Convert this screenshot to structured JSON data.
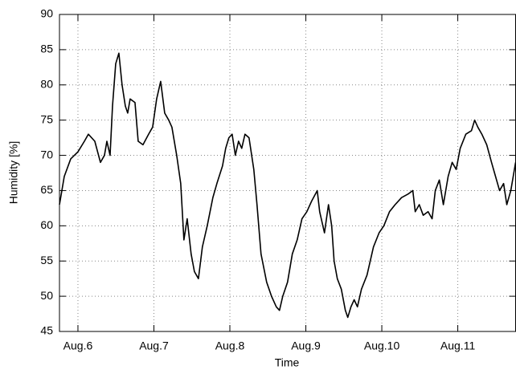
{
  "chart_data": {
    "type": "line",
    "xlabel": "Time",
    "ylabel": "Humidity [%]",
    "xlim": [
      5.757,
      11.761
    ],
    "xticks": [
      {
        "value": 6,
        "label": "Aug.6"
      },
      {
        "value": 7,
        "label": "Aug.7"
      },
      {
        "value": 8,
        "label": "Aug.8"
      },
      {
        "value": 9,
        "label": "Aug.9"
      },
      {
        "value": 10,
        "label": "Aug.10"
      },
      {
        "value": 11,
        "label": "Aug.11"
      }
    ],
    "ylim": [
      45,
      90
    ],
    "yticks": [
      45,
      50,
      55,
      60,
      65,
      70,
      75,
      80,
      85,
      90
    ],
    "grid": true,
    "series": [
      {
        "color": "#000000",
        "x": [
          5.757,
          5.82,
          5.905,
          6.0,
          6.085,
          6.137,
          6.222,
          6.296,
          6.349,
          6.381,
          6.423,
          6.455,
          6.497,
          6.539,
          6.581,
          6.624,
          6.655,
          6.687,
          6.751,
          6.793,
          6.856,
          6.93,
          6.983,
          7.036,
          7.089,
          7.142,
          7.195,
          7.237,
          7.3,
          7.353,
          7.395,
          7.438,
          7.49,
          7.533,
          7.586,
          7.638,
          7.702,
          7.776,
          7.829,
          7.903,
          7.945,
          7.987,
          8.03,
          8.072,
          8.114,
          8.156,
          8.199,
          8.252,
          8.315,
          8.357,
          8.41,
          8.484,
          8.548,
          8.611,
          8.653,
          8.696,
          8.759,
          8.822,
          8.886,
          8.949,
          9.013,
          9.076,
          9.15,
          9.182,
          9.245,
          9.298,
          9.34,
          9.372,
          9.414,
          9.467,
          9.52,
          9.552,
          9.594,
          9.636,
          9.679,
          9.732,
          9.805,
          9.89,
          9.964,
          10.027,
          10.101,
          10.175,
          10.26,
          10.345,
          10.408,
          10.44,
          10.493,
          10.545,
          10.609,
          10.662,
          10.704,
          10.757,
          10.81,
          10.873,
          10.926,
          10.979,
          11.032,
          11.106,
          11.18,
          11.222,
          11.264,
          11.317,
          11.381,
          11.444,
          11.497,
          11.55,
          11.603,
          11.645,
          11.698,
          11.761
        ],
        "values": [
          63,
          67,
          69.5,
          70.5,
          72,
          73,
          72,
          69,
          70,
          72,
          70,
          77,
          83,
          84.5,
          80,
          77,
          76,
          78,
          77.5,
          72,
          71.5,
          73,
          74,
          78,
          80.5,
          76,
          75,
          74,
          70,
          66,
          58,
          61,
          56,
          53.5,
          52.5,
          57,
          60,
          64,
          66,
          68.5,
          71,
          72.5,
          73,
          70,
          72,
          71,
          73,
          72.5,
          68,
          63,
          56,
          52,
          50,
          48.5,
          48,
          50,
          52,
          56,
          58,
          61,
          62,
          63.5,
          65,
          62,
          59,
          63,
          60,
          55,
          52.5,
          51,
          48,
          47,
          48.5,
          49.5,
          48.5,
          51,
          53,
          57,
          59,
          60,
          62,
          63,
          64,
          64.5,
          65,
          62,
          63,
          61.5,
          62,
          61,
          65,
          66.5,
          63,
          67,
          69,
          68,
          71,
          73,
          73.5,
          75,
          74,
          73,
          71.5,
          69,
          67,
          65,
          66,
          63,
          65,
          69
        ]
      }
    ]
  }
}
